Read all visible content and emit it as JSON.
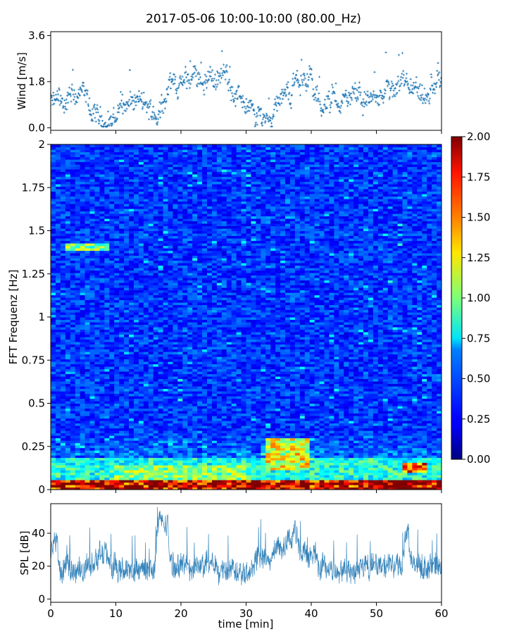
{
  "figure": {
    "title": "2017-05-06 10:00-10:00 (80.00_Hz)"
  },
  "chart_data": [
    {
      "type": "scatter",
      "name": "wind",
      "ylabel": "Wind [m/s]",
      "xlim": [
        0,
        60
      ],
      "ylim": [
        -0.1,
        3.75
      ],
      "y_ticks": [
        "0.0",
        "1.8",
        "3.6"
      ],
      "y_tick_values": [
        0.0,
        1.8,
        3.6
      ],
      "color": "#1f77b4",
      "marker": "+",
      "series_description_segments": [
        {
          "x": [
            0,
            2
          ],
          "mean": 0.9
        },
        {
          "x": [
            2,
            5
          ],
          "mean": 1.2
        },
        {
          "x": [
            5,
            6
          ],
          "mean": 0.8
        },
        {
          "x": [
            6,
            10
          ],
          "mean": 0.3
        },
        {
          "x": [
            10,
            14
          ],
          "mean": 1.0
        },
        {
          "x": [
            14,
            17
          ],
          "mean": 0.6
        },
        {
          "x": [
            17,
            21
          ],
          "mean": 1.7
        },
        {
          "x": [
            21,
            27
          ],
          "mean": 2.0
        },
        {
          "x": [
            27,
            30
          ],
          "mean": 1.2
        },
        {
          "x": [
            30,
            34
          ],
          "mean": 0.5
        },
        {
          "x": [
            34,
            37
          ],
          "mean": 1.3
        },
        {
          "x": [
            37,
            40
          ],
          "mean": 2.0
        },
        {
          "x": [
            40,
            43
          ],
          "mean": 0.9
        },
        {
          "x": [
            43,
            50
          ],
          "mean": 1.1
        },
        {
          "x": [
            50,
            53
          ],
          "mean": 1.3
        },
        {
          "x": [
            53,
            56
          ],
          "mean": 1.4
        },
        {
          "x": [
            56,
            58
          ],
          "mean": 0.9
        },
        {
          "x": [
            58,
            60
          ],
          "mean": 1.8
        }
      ]
    },
    {
      "type": "heatmap",
      "name": "spectrogram",
      "ylabel": "FFT Frequenz [Hz]",
      "xlim": [
        0,
        60
      ],
      "ylim": [
        0,
        2
      ],
      "y_ticks": [
        "0",
        "0.25",
        "0.5",
        "0.75",
        "1",
        "1.25",
        "1.5",
        "1.75",
        "2"
      ],
      "y_tick_values": [
        0,
        0.25,
        0.5,
        0.75,
        1,
        1.25,
        1.5,
        1.75,
        2
      ],
      "colormap": "jet",
      "colorbar": {
        "range": [
          0.0,
          2.0
        ],
        "ticks": [
          "0.00",
          "0.25",
          "0.50",
          "0.75",
          "1.00",
          "1.25",
          "1.50",
          "1.75",
          "2.00"
        ],
        "tick_values": [
          0.0,
          0.25,
          0.5,
          0.75,
          1.0,
          1.25,
          1.5,
          1.75,
          2.0
        ]
      },
      "background_level": 0.35,
      "features": [
        {
          "x": [
            0,
            60
          ],
          "y": [
            0,
            0.06
          ],
          "level": 1.9
        },
        {
          "x": [
            0,
            60
          ],
          "y": [
            0.06,
            0.18
          ],
          "level": 0.8
        },
        {
          "x": [
            10,
            30
          ],
          "y": [
            0.06,
            0.14
          ],
          "level": 1.0
        },
        {
          "x": [
            33,
            40
          ],
          "y": [
            0.12,
            0.3
          ],
          "level": 1.2
        },
        {
          "x": [
            54,
            58
          ],
          "y": [
            0.1,
            0.16
          ],
          "level": 1.5
        },
        {
          "x": [
            2,
            9
          ],
          "y": [
            1.38,
            1.43
          ],
          "level": 1.0
        }
      ]
    },
    {
      "type": "line",
      "name": "spl",
      "xlabel": "time [min]",
      "ylabel": "SPL [dB]",
      "xlim": [
        0,
        60
      ],
      "ylim": [
        -2,
        58
      ],
      "x_ticks": [
        "0",
        "10",
        "20",
        "30",
        "40",
        "50",
        "60"
      ],
      "x_tick_values": [
        0,
        10,
        20,
        30,
        40,
        50,
        60
      ],
      "y_ticks": [
        "0",
        "20",
        "40"
      ],
      "y_tick_values": [
        0,
        20,
        40
      ],
      "color": "#1f77b4",
      "series_description_segments": [
        {
          "x": [
            0,
            1
          ],
          "mean": 35
        },
        {
          "x": [
            1,
            5
          ],
          "mean": 17
        },
        {
          "x": [
            5,
            7
          ],
          "mean": 22
        },
        {
          "x": [
            7,
            9
          ],
          "mean": 26
        },
        {
          "x": [
            9,
            13
          ],
          "mean": 17
        },
        {
          "x": [
            13,
            16
          ],
          "mean": 18
        },
        {
          "x": [
            16,
            18
          ],
          "mean": 45
        },
        {
          "x": [
            18,
            28
          ],
          "mean": 20
        },
        {
          "x": [
            28,
            31
          ],
          "mean": 18
        },
        {
          "x": [
            31,
            34
          ],
          "mean": 24
        },
        {
          "x": [
            34,
            36
          ],
          "mean": 30
        },
        {
          "x": [
            36,
            38
          ],
          "mean": 38
        },
        {
          "x": [
            38,
            41
          ],
          "mean": 28
        },
        {
          "x": [
            41,
            47
          ],
          "mean": 18
        },
        {
          "x": [
            47,
            54
          ],
          "mean": 20
        },
        {
          "x": [
            54,
            55
          ],
          "mean": 42
        },
        {
          "x": [
            55,
            60
          ],
          "mean": 20
        }
      ]
    }
  ]
}
